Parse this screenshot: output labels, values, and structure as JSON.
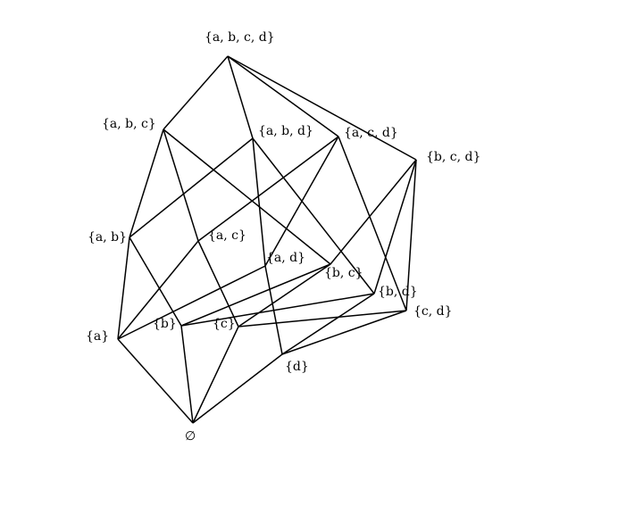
{
  "diagram": {
    "line_color": "#000000",
    "label_color": "#000000",
    "nodes": [
      {
        "id": "abcd",
        "label": "{a, b, c, d}"
      },
      {
        "id": "abc",
        "label": "{a, b, c}"
      },
      {
        "id": "abd",
        "label": "{a, b, d}"
      },
      {
        "id": "acd",
        "label": "{a, c, d}"
      },
      {
        "id": "bcd",
        "label": "{b, c, d}"
      },
      {
        "id": "ab",
        "label": "{a, b}"
      },
      {
        "id": "ac",
        "label": "{a, c}"
      },
      {
        "id": "ad",
        "label": "{a, d}"
      },
      {
        "id": "bc",
        "label": "{b, c}"
      },
      {
        "id": "bd",
        "label": "{b, d}"
      },
      {
        "id": "cd",
        "label": "{c, d}"
      },
      {
        "id": "a",
        "label": "{a}"
      },
      {
        "id": "b",
        "label": "{b}"
      },
      {
        "id": "c",
        "label": "{c}"
      },
      {
        "id": "d",
        "label": "{d}"
      },
      {
        "id": "empty",
        "label": "∅"
      }
    ],
    "edges": [
      [
        "abcd",
        "abc"
      ],
      [
        "abcd",
        "abd"
      ],
      [
        "abcd",
        "acd"
      ],
      [
        "abcd",
        "bcd"
      ],
      [
        "abc",
        "ab"
      ],
      [
        "abc",
        "ac"
      ],
      [
        "abc",
        "bc"
      ],
      [
        "abd",
        "ab"
      ],
      [
        "abd",
        "ad"
      ],
      [
        "abd",
        "bd"
      ],
      [
        "acd",
        "ac"
      ],
      [
        "acd",
        "ad"
      ],
      [
        "acd",
        "cd"
      ],
      [
        "bcd",
        "bc"
      ],
      [
        "bcd",
        "bd"
      ],
      [
        "bcd",
        "cd"
      ],
      [
        "ab",
        "a"
      ],
      [
        "ab",
        "b"
      ],
      [
        "ac",
        "a"
      ],
      [
        "ac",
        "c"
      ],
      [
        "ad",
        "a"
      ],
      [
        "ad",
        "d"
      ],
      [
        "bc",
        "b"
      ],
      [
        "bc",
        "c"
      ],
      [
        "bd",
        "b"
      ],
      [
        "bd",
        "d"
      ],
      [
        "cd",
        "c"
      ],
      [
        "cd",
        "d"
      ],
      [
        "a",
        "empty"
      ],
      [
        "b",
        "empty"
      ],
      [
        "c",
        "empty"
      ],
      [
        "d",
        "empty"
      ]
    ]
  }
}
